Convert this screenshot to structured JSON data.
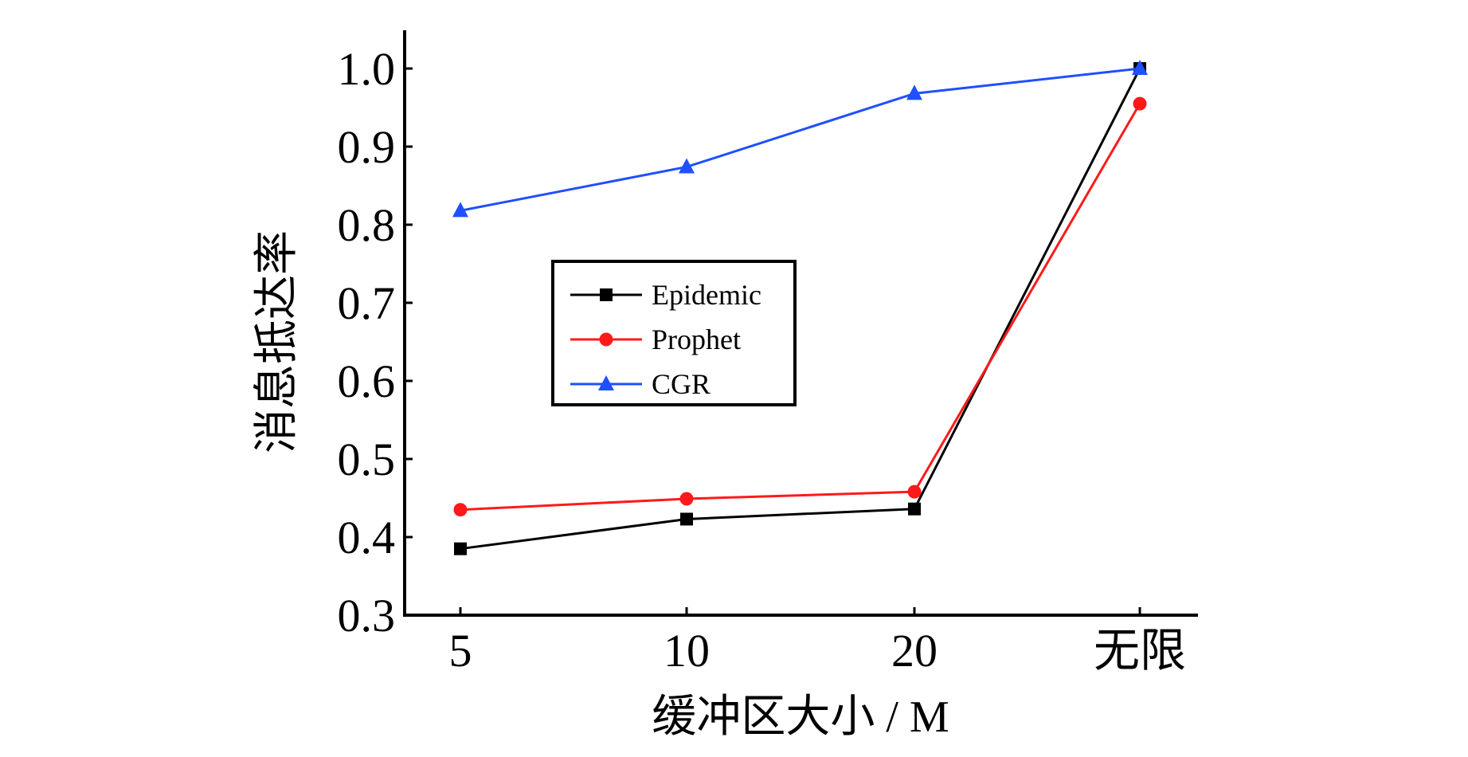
{
  "chart_data": {
    "type": "line",
    "title": "",
    "xlabel": "缓冲区大小 / M",
    "ylabel": "消息抵达率",
    "categories": [
      "5",
      "10",
      "20",
      "无限"
    ],
    "ylim": [
      0.3,
      1.05
    ],
    "yticks": [
      "0.3",
      "0.4",
      "0.5",
      "0.6",
      "0.7",
      "0.8",
      "0.9",
      "1.0"
    ],
    "grid": false,
    "legend_position": "center-left",
    "series": [
      {
        "name": "Epidemic",
        "color": "#000000",
        "marker": "square",
        "values": [
          0.385,
          0.423,
          0.436,
          1.0
        ]
      },
      {
        "name": "Prophet",
        "color": "#ff1a1a",
        "marker": "circle",
        "values": [
          0.435,
          0.449,
          0.458,
          0.955
        ]
      },
      {
        "name": "CGR",
        "color": "#1f4fff",
        "marker": "triangle",
        "values": [
          0.818,
          0.874,
          0.968,
          1.0
        ]
      }
    ]
  }
}
